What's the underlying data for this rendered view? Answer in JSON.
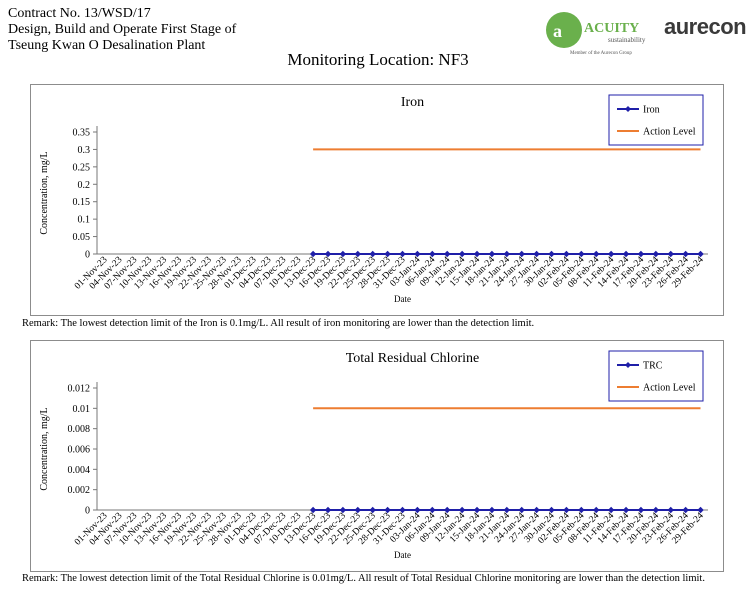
{
  "header": {
    "line1": "Contract No. 13/WSD/17",
    "line2": "Design, Build and Operate First Stage of",
    "line3": "Tseung Kwan O Desalination Plant"
  },
  "logos": {
    "acuity_name": "ACUITY",
    "acuity_sub": "sustainability",
    "acuity_member": "Member of the Aurecon Group",
    "aurecon": "aurecon"
  },
  "colors": {
    "series": "#1f1fa8",
    "action": "#ed7d31",
    "acuity_green": "#6ab04c"
  },
  "page_title": "Monitoring Location: NF3",
  "remarks": {
    "iron": "Remark: The lowest detection limit of the Iron is 0.1mg/L. All result of iron monitoring are lower than the detection limit.",
    "trc": "Remark: The lowest detection limit of the Total Residual Chlorine is 0.01mg/L. All result of Total Residual Chlorine monitoring are lower than the detection limit."
  },
  "chart_data": [
    {
      "type": "line",
      "title": "Iron",
      "xlabel": "Date",
      "ylabel": "Concentration, mg/L",
      "ylim": [
        0,
        0.35
      ],
      "yticks": [
        "0",
        "0.05",
        "0.1",
        "0.15",
        "0.2",
        "0.25",
        "0.3",
        "0.35"
      ],
      "legend_position": "top-right",
      "categories": [
        "01-Nov-23",
        "04-Nov-23",
        "07-Nov-23",
        "10-Nov-23",
        "13-Nov-23",
        "16-Nov-23",
        "19-Nov-23",
        "22-Nov-23",
        "25-Nov-23",
        "28-Nov-23",
        "01-Dec-23",
        "04-Dec-23",
        "07-Dec-23",
        "10-Dec-23",
        "13-Dec-23",
        "16-Dec-23",
        "19-Dec-23",
        "22-Dec-23",
        "25-Dec-23",
        "28-Dec-23",
        "31-Dec-23",
        "03-Jan-24",
        "06-Jan-24",
        "09-Jan-24",
        "12-Jan-24",
        "15-Jan-24",
        "18-Jan-24",
        "21-Jan-24",
        "24-Jan-24",
        "27-Jan-24",
        "30-Jan-24",
        "02-Feb-24",
        "05-Feb-24",
        "08-Feb-24",
        "11-Feb-24",
        "14-Feb-24",
        "17-Feb-24",
        "20-Feb-24",
        "23-Feb-24",
        "26-Feb-24",
        "29-Feb-24"
      ],
      "series": [
        {
          "name": "Iron",
          "values": [
            null,
            null,
            null,
            null,
            null,
            null,
            null,
            null,
            null,
            null,
            null,
            null,
            null,
            null,
            0,
            0,
            0,
            0,
            0,
            0,
            0,
            0,
            0,
            0,
            0,
            0,
            0,
            0,
            0,
            0,
            0,
            0,
            0,
            0,
            0,
            0,
            0,
            0,
            0,
            0,
            0
          ]
        },
        {
          "name": "Action Level",
          "values": [
            null,
            null,
            null,
            null,
            null,
            null,
            null,
            null,
            null,
            null,
            null,
            null,
            null,
            null,
            0.3,
            0.3,
            0.3,
            0.3,
            0.3,
            0.3,
            0.3,
            0.3,
            0.3,
            0.3,
            0.3,
            0.3,
            0.3,
            0.3,
            0.3,
            0.3,
            0.3,
            0.3,
            0.3,
            0.3,
            0.3,
            0.3,
            0.3,
            0.3,
            0.3,
            0.3,
            0.3
          ]
        }
      ]
    },
    {
      "type": "line",
      "title": "Total Residual Chlorine",
      "xlabel": "Date",
      "ylabel": "Concentration, mg/L",
      "ylim": [
        0,
        0.012
      ],
      "yticks": [
        "0",
        "0.002",
        "0.004",
        "0.006",
        "0.008",
        "0.01",
        "0.012"
      ],
      "legend_position": "top-right",
      "categories": [
        "01-Nov-23",
        "04-Nov-23",
        "07-Nov-23",
        "10-Nov-23",
        "13-Nov-23",
        "16-Nov-23",
        "19-Nov-23",
        "22-Nov-23",
        "25-Nov-23",
        "28-Nov-23",
        "01-Dec-23",
        "04-Dec-23",
        "07-Dec-23",
        "10-Dec-23",
        "13-Dec-23",
        "16-Dec-23",
        "19-Dec-23",
        "22-Dec-23",
        "25-Dec-23",
        "28-Dec-23",
        "31-Dec-23",
        "03-Jan-24",
        "06-Jan-24",
        "09-Jan-24",
        "12-Jan-24",
        "15-Jan-24",
        "18-Jan-24",
        "21-Jan-24",
        "24-Jan-24",
        "27-Jan-24",
        "30-Jan-24",
        "02-Feb-24",
        "05-Feb-24",
        "08-Feb-24",
        "11-Feb-24",
        "14-Feb-24",
        "17-Feb-24",
        "20-Feb-24",
        "23-Feb-24",
        "26-Feb-24",
        "29-Feb-24"
      ],
      "series": [
        {
          "name": "TRC",
          "values": [
            null,
            null,
            null,
            null,
            null,
            null,
            null,
            null,
            null,
            null,
            null,
            null,
            null,
            null,
            0,
            0,
            0,
            0,
            0,
            0,
            0,
            0,
            0,
            0,
            0,
            0,
            0,
            0,
            0,
            0,
            0,
            0,
            0,
            0,
            0,
            0,
            0,
            0,
            0,
            0,
            0
          ]
        },
        {
          "name": "Action Level",
          "values": [
            null,
            null,
            null,
            null,
            null,
            null,
            null,
            null,
            null,
            null,
            null,
            null,
            null,
            null,
            0.01,
            0.01,
            0.01,
            0.01,
            0.01,
            0.01,
            0.01,
            0.01,
            0.01,
            0.01,
            0.01,
            0.01,
            0.01,
            0.01,
            0.01,
            0.01,
            0.01,
            0.01,
            0.01,
            0.01,
            0.01,
            0.01,
            0.01,
            0.01,
            0.01,
            0.01,
            0.01
          ]
        }
      ]
    }
  ]
}
